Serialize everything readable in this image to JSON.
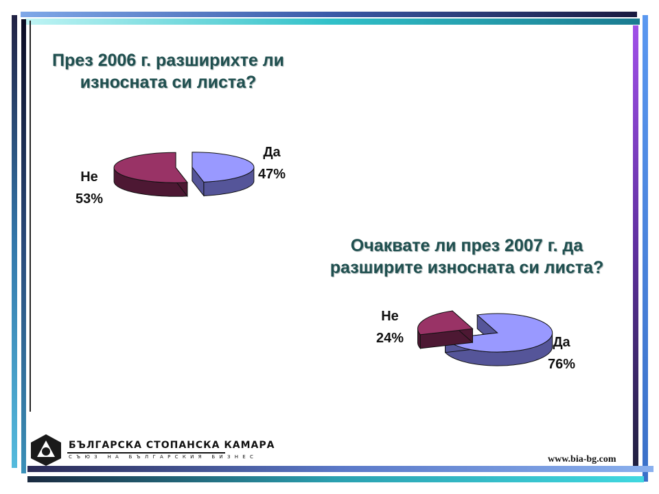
{
  "colors": {
    "da_top": "#9999ff",
    "da_side": "#555599",
    "ne_top": "#993366",
    "ne_side": "#4d1833",
    "title": "#1f4f4f"
  },
  "chart_data": [
    {
      "type": "pie",
      "title_lines": [
        "През 2006 г. разширихте ли",
        "износната си листа?"
      ],
      "categories": [
        "Да",
        "Не"
      ],
      "values": [
        47,
        53
      ],
      "labels": [
        {
          "name": "Да",
          "percent": "47%"
        },
        {
          "name": "Не",
          "percent": "53%"
        }
      ]
    },
    {
      "type": "pie",
      "title_lines": [
        "Очаквате ли през 2007 г. да",
        "разширите износната си листа?"
      ],
      "categories": [
        "Да",
        "Не"
      ],
      "values": [
        76,
        24
      ],
      "labels": [
        {
          "name": "Да",
          "percent": "76%"
        },
        {
          "name": "Не",
          "percent": "24%"
        }
      ]
    }
  ],
  "logo": {
    "name": "БЪЛГАРСКА СТОПАНСКА КАМАРА",
    "subtitle": "СЪЮЗ НА БЪЛГАРСКИЯ БИЗНЕС"
  },
  "website": "www.bia-bg.com"
}
